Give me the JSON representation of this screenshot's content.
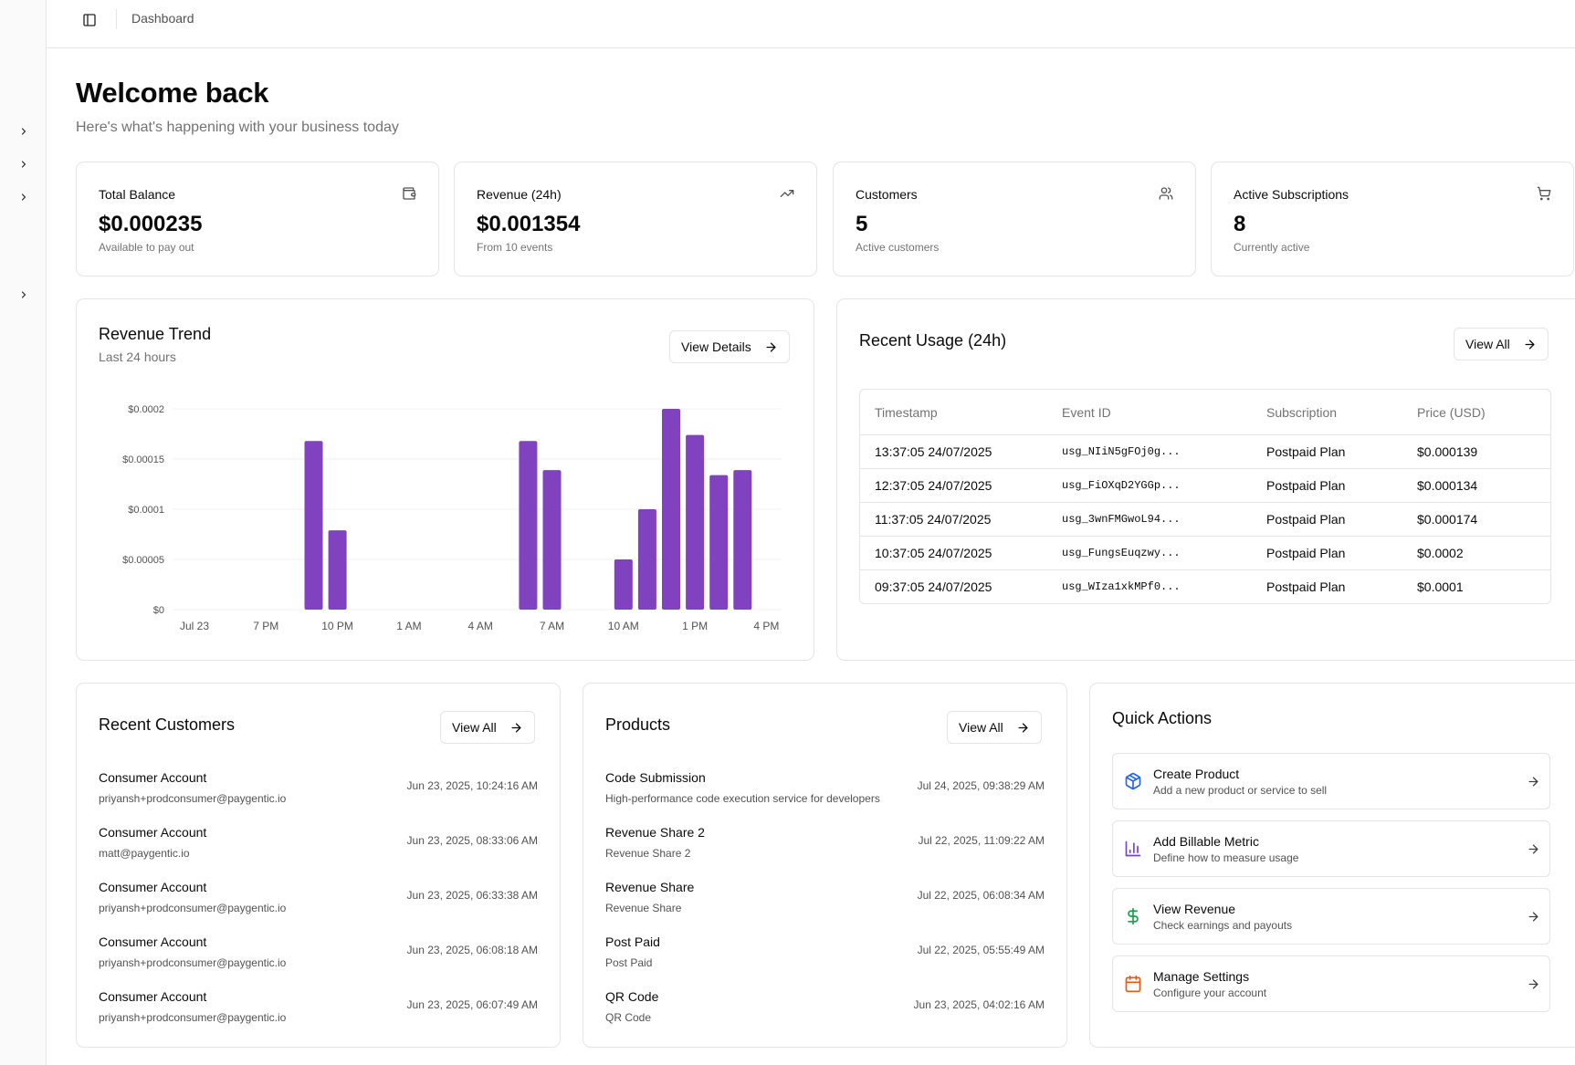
{
  "breadcrumb": "Dashboard",
  "header": {
    "title": "Welcome back",
    "subtitle": "Here's what's happening with your business today"
  },
  "stats": [
    {
      "label": "Total Balance",
      "value": "$0.000235",
      "sub": "Available to pay out",
      "icon": "wallet-icon"
    },
    {
      "label": "Revenue (24h)",
      "value": "$0.001354",
      "sub": "From 10 events",
      "icon": "trending-up-icon"
    },
    {
      "label": "Customers",
      "value": "5",
      "sub": "Active customers",
      "icon": "users-icon"
    },
    {
      "label": "Active Subscriptions",
      "value": "8",
      "sub": "Currently active",
      "icon": "cart-icon"
    }
  ],
  "revenue_trend": {
    "title": "Revenue Trend",
    "subtitle": "Last 24 hours",
    "button": "View Details"
  },
  "chart_data": {
    "type": "bar",
    "color": "#8142bf",
    "ylim": [
      0,
      0.0002
    ],
    "yticks": [
      "$0",
      "$0.00005",
      "$0.0001",
      "$0.00015",
      "$0.0002"
    ],
    "xticks": [
      "Jul 23",
      "7 PM",
      "10 PM",
      "1 AM",
      "4 AM",
      "7 AM",
      "10 AM",
      "1 PM",
      "4 PM"
    ],
    "x": [
      0,
      1,
      2,
      3,
      4,
      5,
      6,
      7,
      8,
      9,
      10,
      11,
      12,
      13,
      14,
      15,
      16,
      17,
      18,
      19,
      20,
      21,
      22,
      23,
      24
    ],
    "values": [
      0,
      0,
      0,
      0,
      0,
      0.000168,
      7.9e-05,
      0,
      0,
      0,
      0,
      0,
      0,
      0,
      0.000168,
      0.000139,
      0,
      0,
      5e-05,
      0.0001,
      0.0002,
      0.000174,
      0.000134,
      0.000139,
      0
    ]
  },
  "usage": {
    "title": "Recent Usage (24h)",
    "button": "View All",
    "columns": [
      "Timestamp",
      "Event ID",
      "Subscription",
      "Price (USD)"
    ],
    "rows": [
      [
        "13:37:05 24/07/2025",
        "usg_NIiN5gFOj0g...",
        "Postpaid Plan",
        "$0.000139"
      ],
      [
        "12:37:05 24/07/2025",
        "usg_FiOXqD2YGGp...",
        "Postpaid Plan",
        "$0.000134"
      ],
      [
        "11:37:05 24/07/2025",
        "usg_3wnFMGwoL94...",
        "Postpaid Plan",
        "$0.000174"
      ],
      [
        "10:37:05 24/07/2025",
        "usg_FungsEuqzwy...",
        "Postpaid Plan",
        "$0.0002"
      ],
      [
        "09:37:05 24/07/2025",
        "usg_WIza1xkMPf0...",
        "Postpaid Plan",
        "$0.0001"
      ]
    ]
  },
  "customers": {
    "title": "Recent Customers",
    "button": "View All",
    "items": [
      {
        "name": "Consumer Account",
        "email": "priyansh+prodconsumer@paygentic.io",
        "date": "Jun 23, 2025, 10:24:16 AM"
      },
      {
        "name": "Consumer Account",
        "email": "matt@paygentic.io",
        "date": "Jun 23, 2025, 08:33:06 AM"
      },
      {
        "name": "Consumer Account",
        "email": "priyansh+prodconsumer@paygentic.io",
        "date": "Jun 23, 2025, 06:33:38 AM"
      },
      {
        "name": "Consumer Account",
        "email": "priyansh+prodconsumer@paygentic.io",
        "date": "Jun 23, 2025, 06:08:18 AM"
      },
      {
        "name": "Consumer Account",
        "email": "priyansh+prodconsumer@paygentic.io",
        "date": "Jun 23, 2025, 06:07:49 AM"
      }
    ]
  },
  "products": {
    "title": "Products",
    "button": "View All",
    "items": [
      {
        "name": "Code Submission",
        "desc": "High-performance code execution service for developers",
        "date": "Jul 24, 2025, 09:38:29 AM"
      },
      {
        "name": "Revenue Share 2",
        "desc": "Revenue Share 2",
        "date": "Jul 22, 2025, 11:09:22 AM"
      },
      {
        "name": "Revenue Share",
        "desc": "Revenue Share",
        "date": "Jul 22, 2025, 06:08:34 AM"
      },
      {
        "name": "Post Paid",
        "desc": "Post Paid",
        "date": "Jul 22, 2025, 05:55:49 AM"
      },
      {
        "name": "QR Code",
        "desc": "QR Code",
        "date": "Jun 23, 2025, 04:02:16 AM"
      }
    ]
  },
  "quick_actions": {
    "title": "Quick Actions",
    "items": [
      {
        "title": "Create Product",
        "desc": "Add a new product or service to sell",
        "icon": "box-icon",
        "color": "#2563eb"
      },
      {
        "title": "Add Billable Metric",
        "desc": "Define how to measure usage",
        "icon": "bar-chart-icon",
        "color": "#7c3aed"
      },
      {
        "title": "View Revenue",
        "desc": "Check earnings and payouts",
        "icon": "dollar-icon",
        "color": "#16a34a"
      },
      {
        "title": "Manage Settings",
        "desc": "Configure your account",
        "icon": "calendar-icon",
        "color": "#ea580c"
      }
    ]
  }
}
